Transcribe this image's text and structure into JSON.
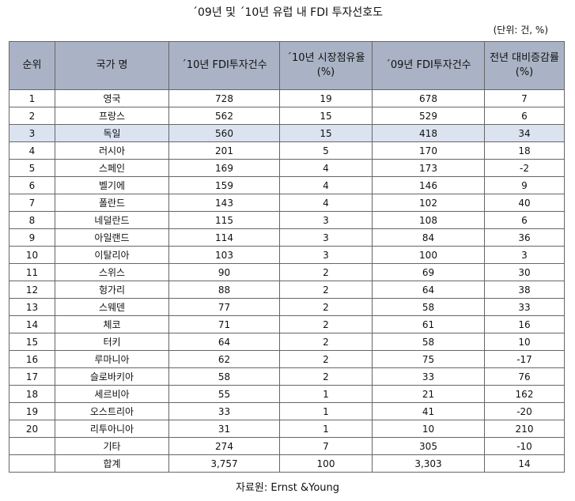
{
  "title": "´09년 및 ´10년 유럽 내 FDI 투자선호도",
  "unit": "(단위: 건, %)",
  "headers": [
    "순위",
    "국가 명",
    "´10년 FDI투자건수",
    "´10년 시장점유율 (%)",
    "´09년 FDI투자건수",
    "전년 대비증감률(%)"
  ],
  "rows": [
    {
      "rank": "1",
      "country": "영국",
      "fdi10": "728",
      "share10": "19",
      "fdi09": "678",
      "change": "7"
    },
    {
      "rank": "2",
      "country": "프랑스",
      "fdi10": "562",
      "share10": "15",
      "fdi09": "529",
      "change": "6"
    },
    {
      "rank": "3",
      "country": "독일",
      "fdi10": "560",
      "share10": "15",
      "fdi09": "418",
      "change": "34"
    },
    {
      "rank": "4",
      "country": "러시아",
      "fdi10": "201",
      "share10": "5",
      "fdi09": "170",
      "change": "18"
    },
    {
      "rank": "5",
      "country": "스페인",
      "fdi10": "169",
      "share10": "4",
      "fdi09": "173",
      "change": "-2"
    },
    {
      "rank": "6",
      "country": "벨기에",
      "fdi10": "159",
      "share10": "4",
      "fdi09": "146",
      "change": "9"
    },
    {
      "rank": "7",
      "country": "폴란드",
      "fdi10": "143",
      "share10": "4",
      "fdi09": "102",
      "change": "40"
    },
    {
      "rank": "8",
      "country": "네덜란드",
      "fdi10": "115",
      "share10": "3",
      "fdi09": "108",
      "change": "6"
    },
    {
      "rank": "9",
      "country": "아일랜드",
      "fdi10": "114",
      "share10": "3",
      "fdi09": "84",
      "change": "36"
    },
    {
      "rank": "10",
      "country": "이탈리아",
      "fdi10": "103",
      "share10": "3",
      "fdi09": "100",
      "change": "3"
    },
    {
      "rank": "11",
      "country": "스위스",
      "fdi10": "90",
      "share10": "2",
      "fdi09": "69",
      "change": "30"
    },
    {
      "rank": "12",
      "country": "헝가리",
      "fdi10": "88",
      "share10": "2",
      "fdi09": "64",
      "change": "38"
    },
    {
      "rank": "13",
      "country": "스웨덴",
      "fdi10": "77",
      "share10": "2",
      "fdi09": "58",
      "change": "33"
    },
    {
      "rank": "14",
      "country": "체코",
      "fdi10": "71",
      "share10": "2",
      "fdi09": "61",
      "change": "16"
    },
    {
      "rank": "15",
      "country": "터키",
      "fdi10": "64",
      "share10": "2",
      "fdi09": "58",
      "change": "10"
    },
    {
      "rank": "16",
      "country": "루마니아",
      "fdi10": "62",
      "share10": "2",
      "fdi09": "75",
      "change": "-17"
    },
    {
      "rank": "17",
      "country": "슬로바키아",
      "fdi10": "58",
      "share10": "2",
      "fdi09": "33",
      "change": "76"
    },
    {
      "rank": "18",
      "country": "세르비아",
      "fdi10": "55",
      "share10": "1",
      "fdi09": "21",
      "change": "162"
    },
    {
      "rank": "19",
      "country": "오스트리아",
      "fdi10": "33",
      "share10": "1",
      "fdi09": "41",
      "change": "-20"
    },
    {
      "rank": "20",
      "country": "리투아니아",
      "fdi10": "31",
      "share10": "1",
      "fdi09": "10",
      "change": "210"
    },
    {
      "rank": "",
      "country": "기타",
      "fdi10": "274",
      "share10": "7",
      "fdi09": "305",
      "change": "-10"
    },
    {
      "rank": "",
      "country": "합계",
      "fdi10": "3,757",
      "share10": "100",
      "fdi09": "3,303",
      "change": "14"
    }
  ],
  "highlight_rank": "3",
  "colors": {
    "header_bg": "#aab3c5",
    "highlight_bg": "#dbe3f1",
    "border": "#666666"
  },
  "source": "자료원: Ernst &Young"
}
